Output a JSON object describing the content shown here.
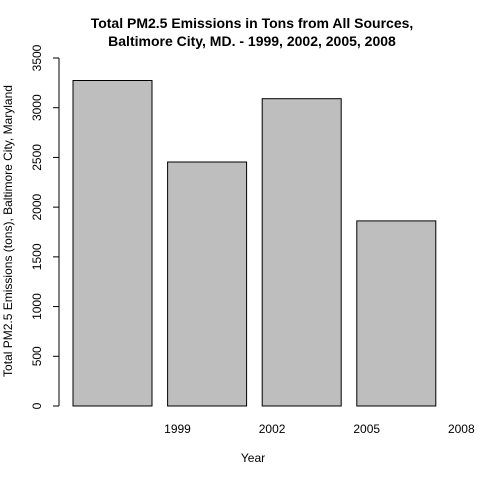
{
  "chart_data": {
    "type": "bar",
    "title_lines": [
      "Total PM2.5 Emissions in Tons from All Sources,",
      "Baltimore City, MD. - 1999, 2002, 2005, 2008"
    ],
    "xlabel": "Year",
    "ylabel": "Total PM2.5 Emissions (tons), Baltimore City, Maryland",
    "categories": [
      "1999",
      "2002",
      "2005",
      "2008"
    ],
    "values": [
      3274,
      2454,
      3091,
      1862
    ],
    "ylim": [
      0,
      3500
    ],
    "yticks": [
      0,
      500,
      1000,
      1500,
      2000,
      2500,
      3000,
      3500
    ],
    "bar_color": "#bebebe",
    "grid": false,
    "legend": "none"
  }
}
